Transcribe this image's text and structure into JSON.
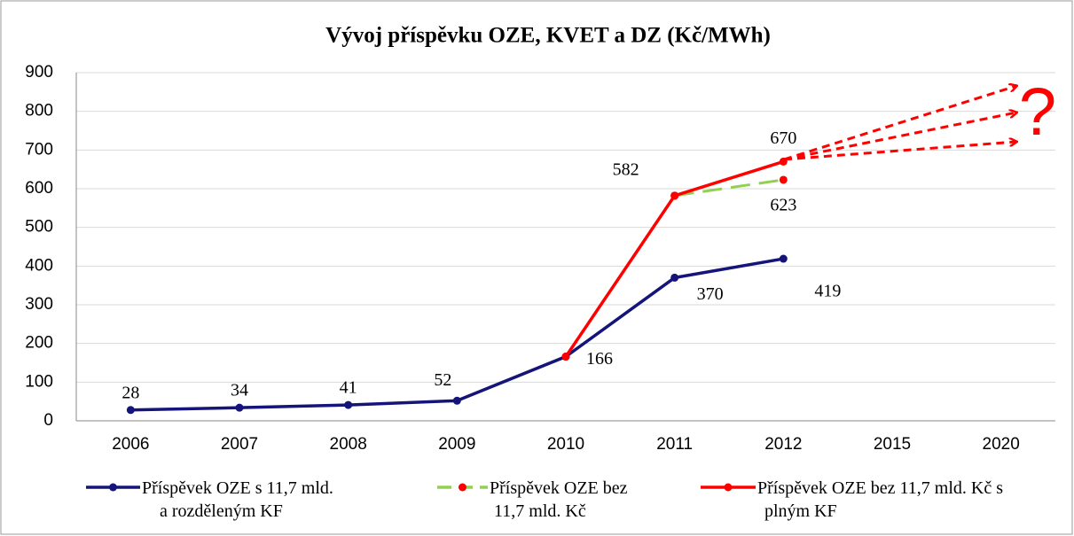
{
  "chart_data": {
    "type": "line",
    "title": "Vývoj příspěvku OZE, KVET a DZ (Kč/MWh)",
    "categories": [
      "2006",
      "2007",
      "2008",
      "2009",
      "2010",
      "2011",
      "2012",
      "2015",
      "2020"
    ],
    "series": [
      {
        "name": "Příspěvek OZE s 11,7 mld. a rozděleným KF",
        "color": "#14147a",
        "marker_color": "#14147a",
        "dash": false,
        "values": [
          28,
          34,
          41,
          52,
          166,
          370,
          419,
          null,
          null
        ]
      },
      {
        "name": "Příspěvek OZE bez 11,7 mld. Kč",
        "color": "#92d050",
        "marker_color": "#ff0000",
        "dash": true,
        "values": [
          null,
          null,
          null,
          null,
          null,
          582,
          623,
          null,
          null
        ]
      },
      {
        "name": "Příspěvek OZE bez 11,7 mld. Kč s plným KF",
        "color": "#ff0000",
        "marker_color": "#ff0000",
        "dash": false,
        "values": [
          null,
          null,
          null,
          null,
          166,
          582,
          670,
          null,
          null
        ]
      }
    ],
    "annotation": "?",
    "ylim": [
      0,
      900
    ],
    "yticks": [
      0,
      100,
      200,
      300,
      400,
      500,
      600,
      700,
      800,
      900
    ],
    "grid": true,
    "legend": "bottom"
  }
}
